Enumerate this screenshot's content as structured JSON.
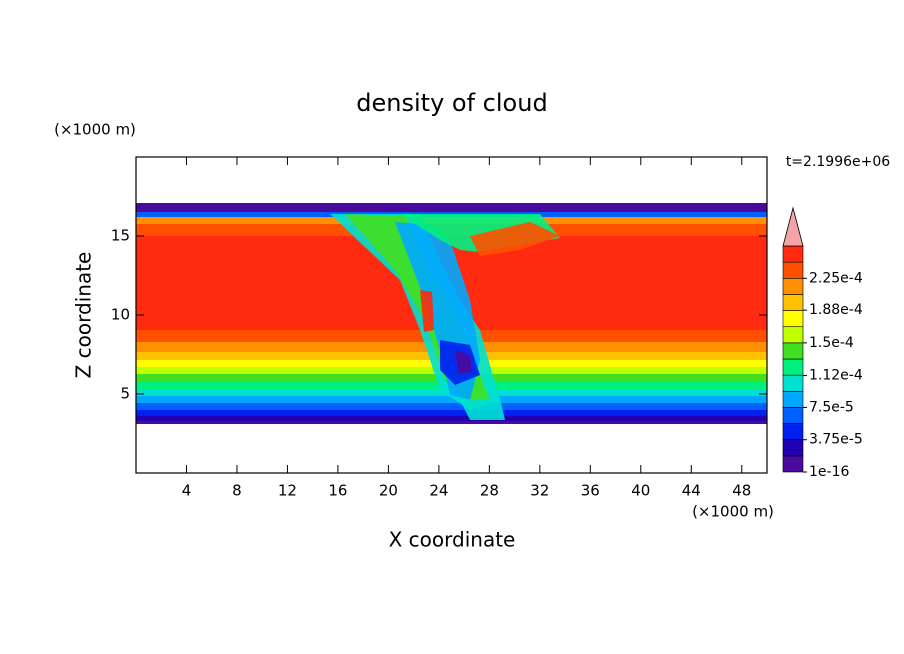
{
  "chart_data": {
    "type": "contour",
    "title": "density of cloud",
    "x_label": "X coordinate",
    "y_label": "Z coordinate",
    "x_unit": "(×1000 m)",
    "y_unit": "(×1000 m)",
    "annotation": "t=2.1996e+06",
    "xlim": [
      0,
      50
    ],
    "ylim": [
      0,
      20
    ],
    "xticks": [
      4,
      8,
      12,
      16,
      20,
      24,
      28,
      32,
      36,
      40,
      44,
      48
    ],
    "yticks": [
      5,
      10,
      15
    ],
    "colorbar": {
      "levels": [
        1e-16,
        1.875e-05,
        3.75e-05,
        5.625e-05,
        7.5e-05,
        9.375e-05,
        0.0001125,
        0.00013125,
        0.00015,
        0.00016875,
        0.0001875,
        0.00020625,
        0.000225,
        0.00024375,
        0.0002625
      ],
      "colors": [
        "#4a0a9c",
        "#2000b0",
        "#0020f0",
        "#0060ff",
        "#00a8ff",
        "#00e0d0",
        "#00f080",
        "#40e020",
        "#c0ff00",
        "#ffff00",
        "#ffc000",
        "#ff9000",
        "#ff5000",
        "#ff2a10"
      ],
      "over_color": "#f4a4a4",
      "ticks": [
        {
          "value": 1e-16,
          "label": "1e-16"
        },
        {
          "value": 3.75e-05,
          "label": "3.75e-5"
        },
        {
          "value": 7.5e-05,
          "label": "7.5e-5"
        },
        {
          "value": 0.000112,
          "label": "1.12e-4"
        },
        {
          "value": 0.00015,
          "label": "1.5e-4"
        },
        {
          "value": 0.000188,
          "label": "1.88e-4"
        },
        {
          "value": 0.000225,
          "label": "2.25e-4"
        }
      ]
    }
  }
}
